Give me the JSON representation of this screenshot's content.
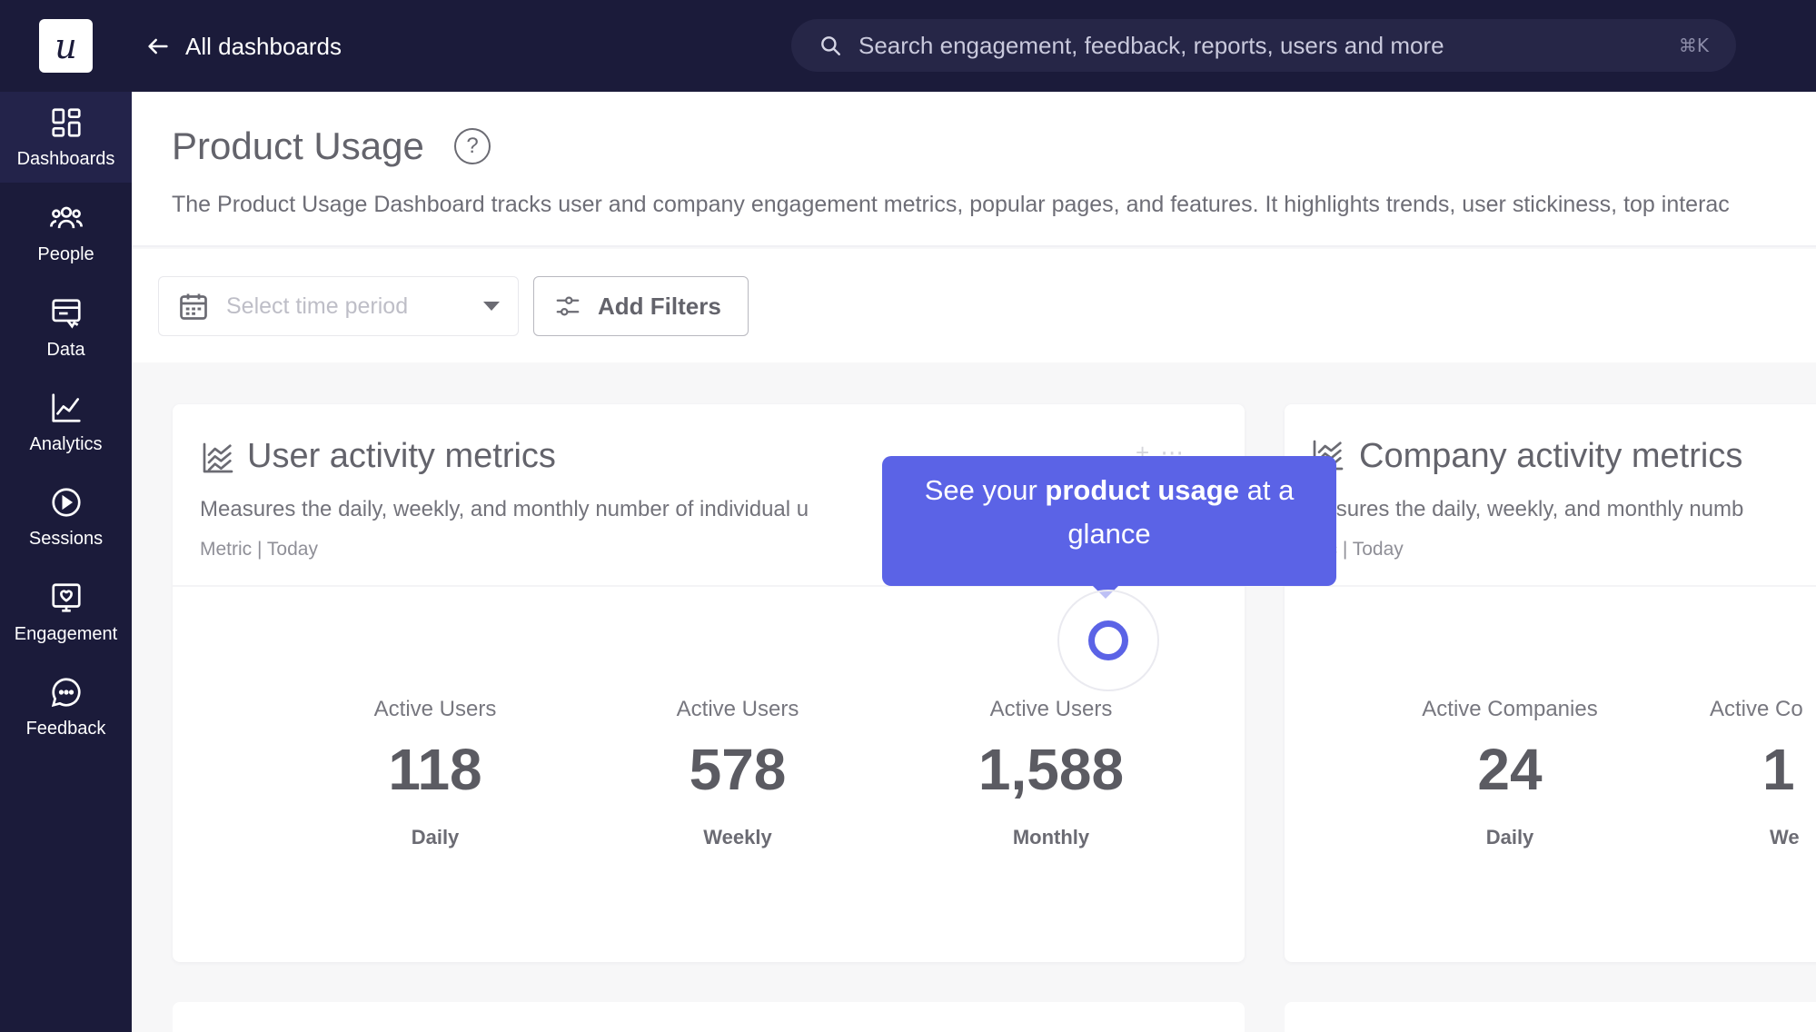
{
  "topbar": {
    "logo_letter": "u",
    "back_label": "All dashboards",
    "search_placeholder": "Search engagement, feedback, reports, users and more",
    "search_shortcut": "⌘K"
  },
  "sidebar": {
    "items": [
      {
        "label": "Dashboards",
        "icon": "dashboard-icon",
        "active": true
      },
      {
        "label": "People",
        "icon": "people-icon"
      },
      {
        "label": "Data",
        "icon": "data-icon"
      },
      {
        "label": "Analytics",
        "icon": "analytics-icon"
      },
      {
        "label": "Sessions",
        "icon": "play-icon"
      },
      {
        "label": "Engagement",
        "icon": "engagement-icon"
      },
      {
        "label": "Feedback",
        "icon": "chat-icon"
      }
    ]
  },
  "header": {
    "title": "Product Usage",
    "description": "The Product Usage Dashboard tracks user and company engagement metrics, popular pages, and features. It highlights trends, user stickiness, top interac"
  },
  "filters": {
    "time_placeholder": "Select time period",
    "add_filters_label": "Add Filters"
  },
  "cards": [
    {
      "title": "User activity metrics",
      "description": "Measures the daily, weekly, and monthly number of individual u",
      "meta": "Metric  |  Today",
      "metrics": [
        {
          "label": "Active Users",
          "value": "118",
          "period": "Daily"
        },
        {
          "label": "Active Users",
          "value": "578",
          "period": "Weekly"
        },
        {
          "label": "Active Users",
          "value": "1,588",
          "period": "Monthly"
        }
      ]
    },
    {
      "title": "Company activity metrics",
      "description": "easures the daily, weekly, and monthly numb",
      "meta": "tric  |  Today",
      "metrics": [
        {
          "label": "Active Companies",
          "value": "24",
          "period": "Daily"
        },
        {
          "label": "Active Co",
          "value": "1",
          "period": "We"
        }
      ]
    }
  ],
  "tooltip": {
    "text_before": "See your ",
    "text_bold": "product usage",
    "text_after": " at a glance"
  },
  "colors": {
    "nav_bg": "#1b1b3a",
    "accent": "#5b63e6"
  }
}
